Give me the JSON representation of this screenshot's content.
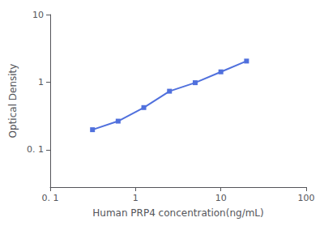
{
  "chart_data": {
    "type": "line",
    "xlabel": "Human PRP4 concentration(ng/mL)",
    "ylabel": "Optical Density",
    "x": [
      0.313,
      0.625,
      1.25,
      2.5,
      5,
      10,
      20
    ],
    "values": [
      0.198,
      0.265,
      0.421,
      0.735,
      0.982,
      1.421,
      2.052
    ],
    "xlim": [
      0.1,
      100
    ],
    "ylim": [
      0.028,
      10
    ],
    "xticks": [
      {
        "value": 0.1,
        "label": "0. 1"
      },
      1,
      10,
      100
    ],
    "yticks": [
      {
        "value": 0.1,
        "label": "0. 1"
      },
      1,
      10
    ],
    "log": true,
    "grid": false,
    "marker": "square"
  }
}
